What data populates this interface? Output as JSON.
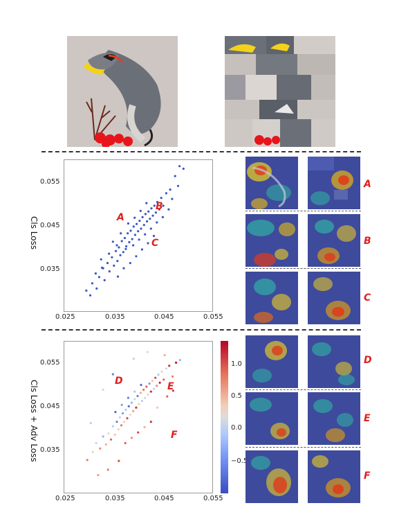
{
  "chart_data": [
    {
      "type": "scatter",
      "title": "",
      "xlabel": "",
      "ylabel": "Cls Loss",
      "xlim": [
        0.025,
        0.055
      ],
      "ylim": [
        0.028,
        0.057
      ],
      "xticks": [
        "0.025",
        "0.035",
        "0.045",
        "0.055"
      ],
      "yticks": [
        "0.055",
        "0.045",
        "0.035"
      ],
      "points": [
        [
          0.0296,
          0.0318
        ],
        [
          0.0308,
          0.0332
        ],
        [
          0.0315,
          0.0351
        ],
        [
          0.0322,
          0.0344
        ],
        [
          0.0328,
          0.0362
        ],
        [
          0.0333,
          0.0338
        ],
        [
          0.0339,
          0.0371
        ],
        [
          0.0343,
          0.0355
        ],
        [
          0.0348,
          0.0382
        ],
        [
          0.0352,
          0.0366
        ],
        [
          0.0356,
          0.0394
        ],
        [
          0.0359,
          0.0375
        ],
        [
          0.0362,
          0.0401
        ],
        [
          0.0365,
          0.0386
        ],
        [
          0.0368,
          0.0413
        ],
        [
          0.0371,
          0.0392
        ],
        [
          0.0374,
          0.0419
        ],
        [
          0.0377,
          0.0403
        ],
        [
          0.038,
          0.0428
        ],
        [
          0.0383,
          0.0411
        ],
        [
          0.0386,
          0.0433
        ],
        [
          0.0389,
          0.0417
        ],
        [
          0.0392,
          0.0441
        ],
        [
          0.0395,
          0.0425
        ],
        [
          0.0398,
          0.0446
        ],
        [
          0.0401,
          0.0432
        ],
        [
          0.0404,
          0.0452
        ],
        [
          0.0407,
          0.0437
        ],
        [
          0.041,
          0.0459
        ],
        [
          0.0413,
          0.0444
        ],
        [
          0.0416,
          0.0465
        ],
        [
          0.0419,
          0.0451
        ],
        [
          0.0422,
          0.047
        ],
        [
          0.0425,
          0.0456
        ],
        [
          0.0428,
          0.0476
        ],
        [
          0.0431,
          0.0462
        ],
        [
          0.0434,
          0.0481
        ],
        [
          0.0437,
          0.0468
        ],
        [
          0.044,
          0.0488
        ],
        [
          0.0444,
          0.0474
        ],
        [
          0.0448,
          0.0496
        ],
        [
          0.0452,
          0.0481
        ],
        [
          0.0458,
          0.0505
        ],
        [
          0.0466,
          0.0512
        ],
        [
          0.0476,
          0.0538
        ],
        [
          0.0485,
          0.0557
        ],
        [
          0.0493,
          0.0552
        ],
        [
          0.036,
          0.0345
        ],
        [
          0.0372,
          0.0361
        ],
        [
          0.0385,
          0.0371
        ],
        [
          0.0397,
          0.0384
        ],
        [
          0.0409,
          0.0397
        ],
        [
          0.0421,
          0.0409
        ],
        [
          0.0433,
          0.0423
        ],
        [
          0.035,
          0.0412
        ],
        [
          0.0366,
          0.0428
        ],
        [
          0.0381,
          0.0447
        ],
        [
          0.0394,
          0.0458
        ],
        [
          0.0406,
          0.0471
        ],
        [
          0.0418,
          0.0486
        ],
        [
          0.0342,
          0.0389
        ],
        [
          0.0358,
          0.0405
        ],
        [
          0.0376,
          0.0398
        ],
        [
          0.0391,
          0.0405
        ],
        [
          0.0403,
          0.0416
        ],
        [
          0.0415,
          0.0426
        ],
        [
          0.0427,
          0.0437
        ],
        [
          0.0439,
          0.0449
        ],
        [
          0.0451,
          0.0459
        ],
        [
          0.0463,
          0.0474
        ],
        [
          0.033,
          0.0361
        ],
        [
          0.0326,
          0.0378
        ],
        [
          0.0317,
          0.0322
        ],
        [
          0.0304,
          0.0309
        ],
        [
          0.047,
          0.0494
        ],
        [
          0.0482,
          0.0519
        ]
      ],
      "annotations": [
        "A",
        "B",
        "C"
      ]
    },
    {
      "type": "scatter",
      "title": "",
      "xlabel": "",
      "ylabel": "Cls Loss + Adv Loss",
      "xlim": [
        0.025,
        0.055
      ],
      "ylim": [
        0.024,
        0.058
      ],
      "xticks": [
        "0.025",
        "0.035",
        "0.045",
        "0.055"
      ],
      "yticks": [
        "0.055",
        "0.045",
        "0.035"
      ],
      "colorbar_ticks": [
        "1.0",
        "0.5",
        "0.0",
        "−0.5"
      ],
      "colorbar_range": [
        -1.0,
        1.4
      ],
      "points": [
        [
          0.0298,
          0.0312,
          0.9
        ],
        [
          0.0309,
          0.033,
          0.3
        ],
        [
          0.0316,
          0.035,
          -0.2
        ],
        [
          0.0324,
          0.0338,
          0.8
        ],
        [
          0.033,
          0.0365,
          -0.6
        ],
        [
          0.0336,
          0.0347,
          0.6
        ],
        [
          0.0341,
          0.0372,
          0.1
        ],
        [
          0.0346,
          0.0358,
          1.0
        ],
        [
          0.035,
          0.0388,
          -0.4
        ],
        [
          0.0354,
          0.0369,
          0.5
        ],
        [
          0.0358,
          0.0398,
          -0.8
        ],
        [
          0.0361,
          0.0381,
          0.2
        ],
        [
          0.0364,
          0.0408,
          -0.3
        ],
        [
          0.0367,
          0.039,
          0.9
        ],
        [
          0.037,
          0.0417,
          -0.7
        ],
        [
          0.0373,
          0.0398,
          0.4
        ],
        [
          0.0376,
          0.0425,
          -0.5
        ],
        [
          0.0379,
          0.0406,
          1.1
        ],
        [
          0.0382,
          0.0433,
          -0.9
        ],
        [
          0.0385,
          0.0414,
          0.0
        ],
        [
          0.0388,
          0.0441,
          -0.6
        ],
        [
          0.0391,
          0.0422,
          0.7
        ],
        [
          0.0394,
          0.0449,
          -0.2
        ],
        [
          0.0397,
          0.043,
          1.2
        ],
        [
          0.04,
          0.0456,
          -0.8
        ],
        [
          0.0403,
          0.0438,
          0.3
        ],
        [
          0.0406,
          0.0463,
          0.6
        ],
        [
          0.0409,
          0.0445,
          -0.4
        ],
        [
          0.0412,
          0.047,
          0.9
        ],
        [
          0.0415,
          0.0452,
          -0.1
        ],
        [
          0.0418,
          0.0477,
          1.0
        ],
        [
          0.0421,
          0.0459,
          0.2
        ],
        [
          0.0424,
          0.0484,
          -0.7
        ],
        [
          0.0427,
          0.0466,
          1.2
        ],
        [
          0.043,
          0.049,
          0.5
        ],
        [
          0.0433,
          0.0472,
          -0.3
        ],
        [
          0.0436,
          0.0497,
          1.1
        ],
        [
          0.0439,
          0.0479,
          0.8
        ],
        [
          0.0442,
          0.0504,
          -0.5
        ],
        [
          0.0445,
          0.0486,
          1.3
        ],
        [
          0.0449,
          0.0511,
          0.4
        ],
        [
          0.0453,
          0.0493,
          1.0
        ],
        [
          0.0458,
          0.0518,
          -0.2
        ],
        [
          0.0464,
          0.0524,
          1.2
        ],
        [
          0.0471,
          0.05,
          0.9
        ],
        [
          0.0478,
          0.0531,
          1.3
        ],
        [
          0.0486,
          0.0537,
          -0.6
        ],
        [
          0.0375,
          0.035,
          1.0
        ],
        [
          0.0388,
          0.0362,
          0.8
        ],
        [
          0.0401,
          0.0374,
          1.1
        ],
        [
          0.0414,
          0.0386,
          0.6
        ],
        [
          0.0427,
          0.0398,
          1.2
        ],
        [
          0.0355,
          0.042,
          -0.9
        ],
        [
          0.0368,
          0.0436,
          -0.7
        ],
        [
          0.0381,
          0.0452,
          -0.8
        ],
        [
          0.0394,
          0.0466,
          -0.5
        ],
        [
          0.0407,
          0.0481,
          -0.9
        ],
        [
          0.0362,
          0.031,
          1.1
        ],
        [
          0.034,
          0.029,
          0.9
        ],
        [
          0.032,
          0.0278,
          0.7
        ],
        [
          0.046,
          0.0455,
          1.0
        ],
        [
          0.0472,
          0.0468,
          1.2
        ],
        [
          0.044,
          0.043,
          0.5
        ],
        [
          0.0305,
          0.0395,
          -0.4
        ],
        [
          0.033,
          0.047,
          -0.2
        ],
        [
          0.035,
          0.0505,
          -0.8
        ],
        [
          0.0392,
          0.054,
          -0.3
        ],
        [
          0.042,
          0.0555,
          0.2
        ],
        [
          0.0455,
          0.0548,
          0.6
        ]
      ],
      "annotations": [
        "D",
        "E",
        "F"
      ]
    }
  ],
  "panels": {
    "top_images": [
      "bird-original",
      "bird-shuffled"
    ],
    "row_letters_top": [
      "A",
      "B",
      "C"
    ],
    "row_letters_bottom": [
      "D",
      "E",
      "F"
    ]
  }
}
